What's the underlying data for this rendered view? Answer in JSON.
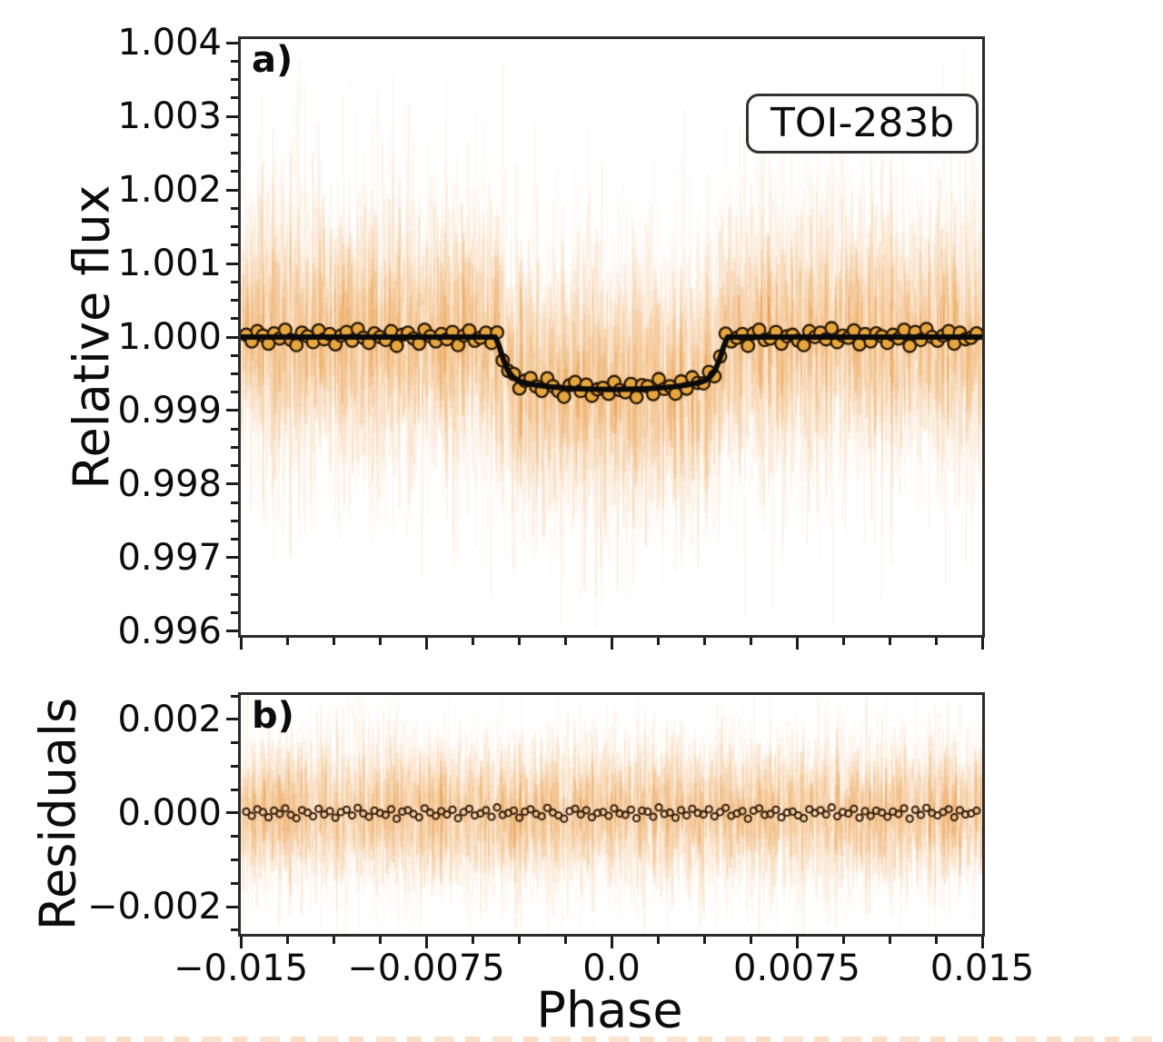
{
  "figure": {
    "background": "#ffffff",
    "accent_orange": "#ED8B23",
    "spine_color": "#2b2b2b"
  },
  "chart_data": [
    {
      "type": "scatter",
      "panel_label": "a)",
      "annotation": "TOI-283b",
      "ylabel": "Relative flux",
      "xlabel": "",
      "xlim": [
        -0.015,
        0.015
      ],
      "ylim": [
        0.99595,
        1.00405
      ],
      "grid": false,
      "legend": "none",
      "yticks": {
        "major": [
          0.996,
          0.997,
          0.998,
          0.999,
          1.0,
          1.001,
          1.002,
          1.003,
          1.004
        ],
        "labels": [
          "0.996",
          "0.997",
          "0.998",
          "0.999",
          "1.000",
          "1.001",
          "1.002",
          "1.003",
          "1.004"
        ],
        "minor_step": 0.00025
      },
      "xticks": {
        "major": [
          -0.015,
          -0.0075,
          0.0,
          0.0075,
          0.015
        ],
        "labels": [],
        "minor_step": 0.001875
      },
      "transit_model": {
        "depth": 0.000712,
        "points": [
          [
            -0.015,
            1.0
          ],
          [
            -0.0047,
            1.0
          ],
          [
            -0.00455,
            0.99988
          ],
          [
            -0.0044,
            0.99972
          ],
          [
            -0.0042,
            0.99955
          ],
          [
            -0.004,
            0.99946
          ],
          [
            -0.0038,
            0.99941
          ],
          [
            -0.00355,
            0.99938
          ],
          [
            -0.0033,
            0.999365
          ],
          [
            -0.003,
            0.999345
          ],
          [
            -0.0025,
            0.999325
          ],
          [
            -0.002,
            0.99931
          ],
          [
            -0.0015,
            0.9993
          ],
          [
            -0.001,
            0.999293
          ],
          [
            -0.0005,
            0.999289
          ],
          [
            0.0,
            0.999288
          ],
          [
            0.0005,
            0.999289
          ],
          [
            0.001,
            0.999293
          ],
          [
            0.0015,
            0.9993
          ],
          [
            0.002,
            0.99931
          ],
          [
            0.0025,
            0.999325
          ],
          [
            0.003,
            0.999345
          ],
          [
            0.0033,
            0.999365
          ],
          [
            0.00355,
            0.99938
          ],
          [
            0.0038,
            0.99941
          ],
          [
            0.004,
            0.99946
          ],
          [
            0.0042,
            0.99955
          ],
          [
            0.0044,
            0.99972
          ],
          [
            0.00455,
            0.99988
          ],
          [
            0.0047,
            1.0
          ],
          [
            0.015,
            1.0
          ]
        ],
        "line_color": "#0a0a0a",
        "line_width": 6
      },
      "binned_points": {
        "source": "model + shared residuals",
        "marker_fill": "#E7A63B",
        "marker_edge": "#241505",
        "radius": 6.8,
        "edge_width": 2.3
      },
      "unbinned_cloud": {
        "color_palette": [
          "#E8861A",
          "#F09A3E",
          "#DD7A10"
        ],
        "center": 1.0,
        "center_jitter_sigma": 0.0012,
        "half_len_base": 0.00025,
        "half_len_spread": 0.0013,
        "long_streak_prob": 0.12,
        "long_streak_extra": 0.0019,
        "count": 4600,
        "seed": 11,
        "follows_model": true
      }
    },
    {
      "type": "scatter",
      "panel_label": "b)",
      "annotation": "",
      "ylabel": "Residuals",
      "xlabel": "Phase",
      "xlim": [
        -0.015,
        0.015
      ],
      "ylim": [
        -0.00258,
        0.00252
      ],
      "grid": false,
      "legend": "none",
      "yticks": {
        "major": [
          -0.002,
          0.0,
          0.002
        ],
        "labels": [
          "−0.002",
          "0.000",
          "0.002"
        ],
        "minor_step": 0.0005
      },
      "xticks": {
        "major": [
          -0.015,
          -0.0075,
          0.0,
          0.0075,
          0.015
        ],
        "labels": [
          "−0.015",
          "−0.0075",
          "0.0",
          "0.0075",
          "0.015"
        ],
        "minor_step": 0.001875
      },
      "residual_points": {
        "source": "shared residuals",
        "marker_fill": "none",
        "marker_edge": "#38220E",
        "radius": 3.6,
        "edge_width": 2.1
      },
      "unbinned_cloud": {
        "color_palette": [
          "#E8861A",
          "#F09A3E",
          "#DD7A10"
        ],
        "center": 0.0,
        "center_jitter_sigma": 0.0011,
        "half_len_base": 0.00022,
        "half_len_spread": 0.0012,
        "long_streak_prob": 0.12,
        "long_streak_extra": 0.0013,
        "count": 4300,
        "seed": 23,
        "follows_model": false
      }
    }
  ],
  "shared_series": {
    "phase_grid": {
      "start": -0.01478,
      "step": 0.0002256,
      "count": 132
    },
    "residuals_ppm": [
      30,
      -60,
      80,
      20,
      -90,
      50,
      -20,
      100,
      -40,
      -110,
      60,
      10,
      -70,
      90,
      -30,
      40,
      -100,
      20,
      70,
      -50,
      110,
      -10,
      -80,
      50,
      0,
      -40,
      80,
      -120,
      30,
      60,
      -20,
      -90,
      100,
      10,
      -60,
      40,
      -30,
      70,
      -110,
      20,
      90,
      -50,
      -10,
      60,
      -80,
      120,
      -40,
      0,
      50,
      -100,
      30,
      80,
      -20,
      -70,
      110,
      10,
      -50,
      -120,
      40,
      90,
      -30,
      60,
      -90,
      0,
      20,
      -60,
      100,
      -10,
      -40,
      70,
      -110,
      50,
      30,
      -80,
      120,
      -20,
      10,
      -100,
      60,
      -50,
      90,
      0,
      -30,
      80,
      -70,
      20,
      110,
      -60,
      -10,
      40,
      -120,
      50,
      100,
      -40,
      -20,
      70,
      -90,
      10,
      30,
      -50,
      -110,
      80,
      0,
      60,
      -30,
      120,
      -70,
      20,
      -10,
      90,
      -100,
      40,
      -60,
      50,
      10,
      -80,
      30,
      -20,
      100,
      -120,
      70,
      -40,
      110,
      0,
      -50,
      20,
      80,
      -90,
      60,
      -30,
      -10,
      50
    ]
  }
}
